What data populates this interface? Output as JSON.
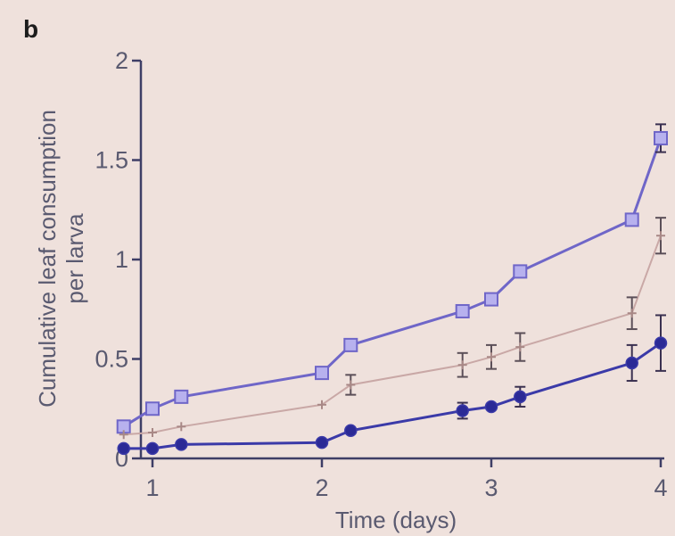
{
  "panel_label": "b",
  "chart_data": {
    "type": "line",
    "title": "",
    "xlabel": "Time (days)",
    "ylabel_line1": "Cumulative leaf consumption",
    "ylabel_line2": "per larva",
    "xlim": [
      0.5,
      4
    ],
    "ylim": [
      0,
      2
    ],
    "xticks": [
      1,
      2,
      3,
      4
    ],
    "yticks": [
      0,
      0.5,
      1,
      1.5,
      2
    ],
    "ytick_labels": [
      "0",
      "0.5",
      "1",
      "1.5",
      "2"
    ],
    "legend": "none",
    "grid": false,
    "series": [
      {
        "marker": "square",
        "color": "#6f66c8",
        "fill": "#b7b1ee",
        "x": [
          0.83,
          1.0,
          1.17,
          2.0,
          2.17,
          2.83,
          3.0,
          3.17,
          3.83,
          4.0
        ],
        "y": [
          0.16,
          0.25,
          0.31,
          0.43,
          0.57,
          0.74,
          0.8,
          0.94,
          1.2,
          1.61
        ],
        "err": [
          0,
          0,
          0,
          0,
          0,
          0,
          0,
          0,
          0,
          0.07
        ]
      },
      {
        "marker": "plus",
        "color": "#c9a8a6",
        "fill": "#c9a8a6",
        "x": [
          0.83,
          1.0,
          1.17,
          2.0,
          2.17,
          2.83,
          3.0,
          3.17,
          3.83,
          4.0
        ],
        "y": [
          0.12,
          0.13,
          0.16,
          0.27,
          0.37,
          0.47,
          0.51,
          0.56,
          0.73,
          1.12
        ],
        "err": [
          0,
          0,
          0,
          0,
          0.05,
          0.06,
          0.06,
          0.07,
          0.08,
          0.09
        ]
      },
      {
        "marker": "circle",
        "color": "#3b3aa8",
        "fill": "#2b2a96",
        "x": [
          0.83,
          1.0,
          1.17,
          2.0,
          2.17,
          2.83,
          3.0,
          3.17,
          3.83,
          4.0
        ],
        "y": [
          0.05,
          0.05,
          0.07,
          0.08,
          0.14,
          0.24,
          0.26,
          0.31,
          0.48,
          0.58
        ],
        "err": [
          0,
          0,
          0,
          0,
          0,
          0.04,
          0,
          0.05,
          0.09,
          0.14
        ]
      }
    ]
  }
}
